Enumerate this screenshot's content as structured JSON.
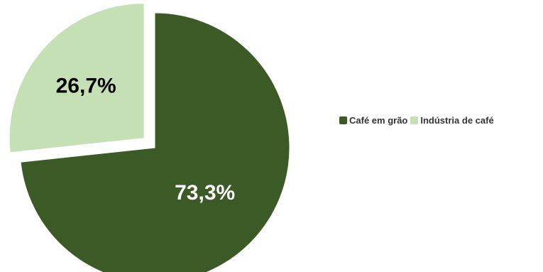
{
  "chart_data": {
    "type": "pie",
    "title": "",
    "slices": [
      {
        "name": "Café em grão",
        "value": 73.3,
        "label": "73,3%",
        "color": "#3b5a25",
        "exploded": false
      },
      {
        "name": "Indústria de café",
        "value": 26.7,
        "label": "26,7%",
        "color": "#c5e0b4",
        "exploded": true
      }
    ],
    "legend_position": "right",
    "label_color_dark_slice": "#ffffff",
    "label_color_light_slice": "#000000"
  },
  "legend": {
    "items": [
      {
        "label": "Café em grão",
        "color": "#3b5a25"
      },
      {
        "label": "Indústria de café",
        "color": "#c5e0b4"
      }
    ]
  }
}
